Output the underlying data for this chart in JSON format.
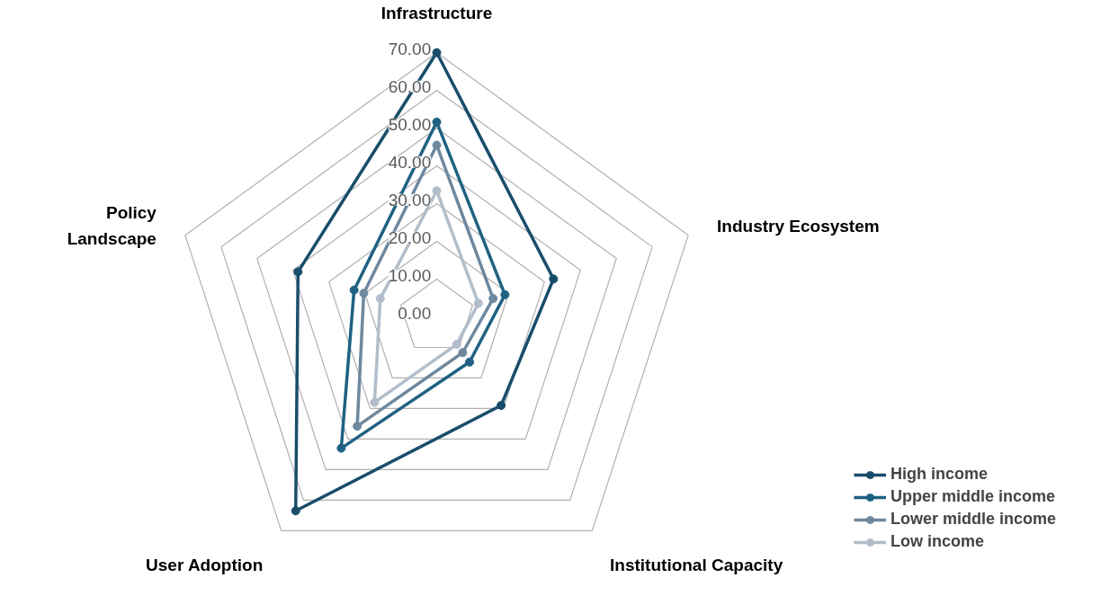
{
  "chart_data": {
    "type": "radar",
    "categories": [
      "Infrastructure",
      "Industry Ecosystem",
      "Institutional Capacity",
      "User Adoption",
      "Policy\nLandscape"
    ],
    "ylim": [
      0,
      70
    ],
    "yticks": [
      {
        "value": 0,
        "label": "0.00"
      },
      {
        "value": 10,
        "label": "10.00"
      },
      {
        "value": 20,
        "label": "20.00"
      },
      {
        "value": 30,
        "label": "30.00"
      },
      {
        "value": 40,
        "label": "40.00"
      },
      {
        "value": 50,
        "label": "50.00"
      },
      {
        "value": 60,
        "label": "60.00"
      },
      {
        "value": 70,
        "label": "70.00"
      }
    ],
    "grid": true,
    "legend": "bottom right",
    "marker": "circle",
    "line_style": "solid",
    "series": [
      {
        "name": "High income",
        "color": "#194d6b",
        "values": [
          70,
          32.5,
          29,
          63.5,
          38.6
        ]
      },
      {
        "name": "Upper middle income",
        "color": "#1f6282",
        "values": [
          51.6,
          19,
          14.8,
          43,
          23
        ]
      },
      {
        "name": "Lower middle income",
        "color": "#6e889e",
        "values": [
          45.5,
          15.7,
          11.7,
          35.8,
          20.3
        ]
      },
      {
        "name": "Low income",
        "color": "#b1bdca",
        "values": [
          33.4,
          11.6,
          9,
          28,
          15.7
        ]
      }
    ]
  }
}
